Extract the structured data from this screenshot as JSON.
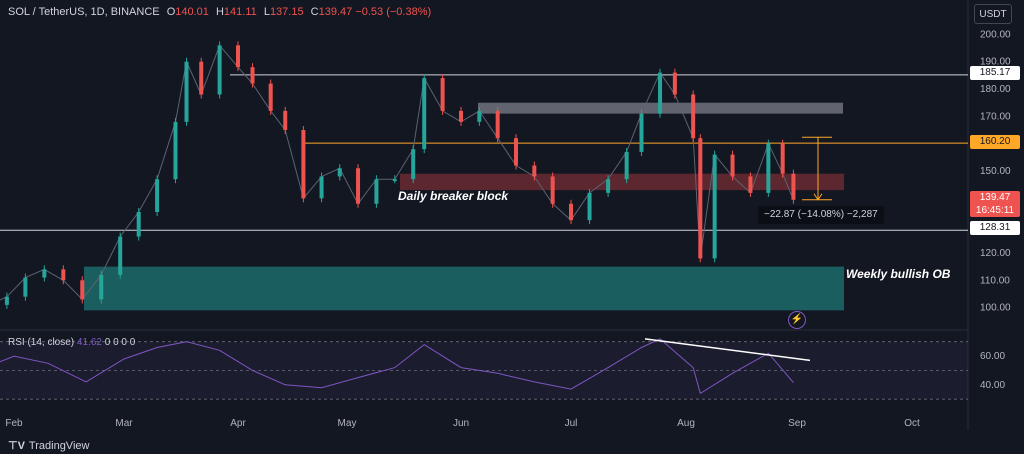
{
  "header": {
    "symbol": "SOL / TetherUS, 1D, BINANCE",
    "o_label": "O",
    "o": "140.01",
    "h_label": "H",
    "h": "141.11",
    "l_label": "L",
    "l": "137.15",
    "c_label": "C",
    "c": "139.47",
    "change": "−0.53 (−0.38%)"
  },
  "currency": "USDT",
  "rsi_header": {
    "label": "RSI (14, close)",
    "value": "41.62",
    "extras": "0  0  0  0"
  },
  "brand": {
    "name": "TradingView"
  },
  "annotations": {
    "daily_breaker": "Daily breaker block",
    "weekly_ob": "Weekly bullish OB",
    "measure": "−22.87 (−14.08%) −2,287"
  },
  "price_tags": {
    "level_185": "185.17",
    "level_160": "160.20",
    "last_price": "139.47",
    "countdown": "16:45:11",
    "level_128": "128.31"
  },
  "colors": {
    "up": "#26a69a",
    "down": "#ef5350",
    "background": "#131722",
    "rsi_line": "#7e57c2",
    "orange_level": "#ffa726",
    "breaker_zone": "#6b2a33",
    "ob_zone": "#1d6b6b",
    "grey_zone": "#7c7f89"
  },
  "chart_data": [
    {
      "type": "line",
      "title": "SOL / TetherUS, 1D, BINANCE",
      "xlabel": "",
      "ylabel": "",
      "x_ticks": [
        "Feb",
        "Mar",
        "Apr",
        "May",
        "Jun",
        "Jul",
        "Aug",
        "Sep",
        "Oct"
      ],
      "y_ticks": [
        100,
        110,
        120,
        130,
        140,
        150,
        160,
        170,
        180,
        190,
        200
      ],
      "ylim": [
        94,
        206
      ],
      "grid": false,
      "series": [
        {
          "name": "SOL / TetherUS",
          "x": [
            "Jan 20",
            "Jan 25",
            "Jan 30",
            "Feb 4",
            "Feb 9",
            "Feb 14",
            "Feb 19",
            "Feb 24",
            "Feb 29",
            "Mar 5",
            "Mar 10",
            "Mar 15",
            "Mar 18",
            "Mar 22",
            "Mar 27",
            "Apr 1",
            "Apr 5",
            "Apr 10",
            "Apr 14",
            "Apr 19",
            "Apr 24",
            "Apr 29",
            "May 4",
            "May 9",
            "May 14",
            "May 19",
            "May 22",
            "May 27",
            "Jun 1",
            "Jun 6",
            "Jun 11",
            "Jun 16",
            "Jun 21",
            "Jun 26",
            "Jul 1",
            "Jul 6",
            "Jul 11",
            "Jul 16",
            "Jul 20",
            "Jul 25",
            "Jul 29",
            "Aug 3",
            "Aug 5",
            "Aug 9",
            "Aug 14",
            "Aug 19",
            "Aug 24",
            "Aug 28",
            "Aug 31"
          ],
          "values": [
            97,
            101,
            104,
            111,
            114,
            110,
            103,
            112,
            126,
            135,
            147,
            168,
            190,
            178,
            196,
            188,
            182,
            172,
            165,
            140,
            148,
            151,
            138,
            147,
            147,
            158,
            184,
            172,
            168,
            172,
            162,
            152,
            148,
            138,
            132,
            142,
            147,
            157,
            171,
            186,
            178,
            162,
            118,
            156,
            148,
            142,
            160,
            149,
            139.47
          ]
        },
        {
          "name": "Key levels",
          "levels": [
            185.17,
            160.2,
            128.31
          ],
          "zones": [
            {
              "name": "Grey supply",
              "from": 171,
              "to": 175
            },
            {
              "name": "Daily breaker block",
              "from": 143,
              "to": 149
            },
            {
              "name": "Weekly bullish OB",
              "from": 99,
              "to": 115
            }
          ],
          "measure": {
            "from": 162.34,
            "to": 139.47,
            "change": -22.87,
            "percent": -14.08
          }
        }
      ]
    },
    {
      "type": "line",
      "title": "RSI (14, close)",
      "y_ticks": [
        40,
        60
      ],
      "ylim": [
        28,
        74
      ],
      "series": [
        {
          "name": "RSI",
          "x": [
            "Jan 20",
            "Feb 1",
            "Feb 10",
            "Feb 20",
            "Mar 1",
            "Mar 10",
            "Mar 18",
            "Mar 27",
            "Apr 5",
            "Apr 14",
            "Apr 24",
            "May 4",
            "May 14",
            "May 22",
            "Jun 1",
            "Jun 11",
            "Jun 21",
            "Jul 1",
            "Jul 11",
            "Jul 20",
            "Jul 25",
            "Aug 3",
            "Aug 5",
            "Aug 14",
            "Aug 24",
            "Aug 31"
          ],
          "values": [
            48,
            60,
            55,
            42,
            58,
            66,
            70,
            64,
            50,
            40,
            38,
            45,
            52,
            68,
            52,
            48,
            42,
            37,
            52,
            66,
            72,
            52,
            34,
            48,
            62,
            41.62
          ]
        }
      ],
      "trendline": {
        "from": 72,
        "to": 57
      }
    }
  ]
}
